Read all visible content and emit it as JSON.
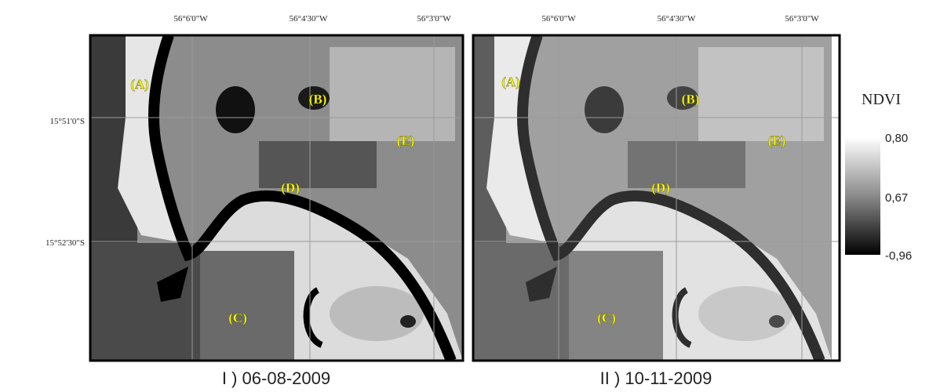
{
  "longitude_labels": [
    "56°6'0\"W",
    "56°4'30\"W",
    "56°3'0\"W"
  ],
  "latitude_labels": [
    "15°51'0\"S",
    "15°52'30\"S"
  ],
  "panels": [
    {
      "caption": "I ) 06-08-2009",
      "regions": [
        "(A)",
        "(B)",
        "(C)",
        "(D)",
        "(E)"
      ]
    },
    {
      "caption": "II ) 10-11-2009",
      "regions": [
        "(A)",
        "(B)",
        "(C)",
        "(D)",
        "(E)"
      ]
    }
  ],
  "legend": {
    "title": "NDVI",
    "labels": [
      "0,80",
      "0,67",
      "-0,96"
    ]
  }
}
